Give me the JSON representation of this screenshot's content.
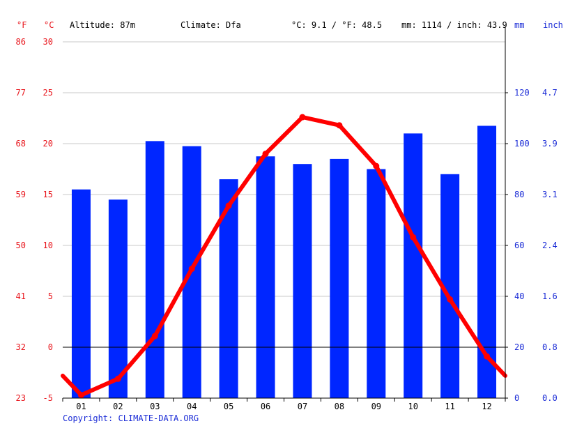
{
  "header": {
    "unit_f": "°F",
    "unit_c": "°C",
    "altitude": "Altitude: 87m",
    "climate": "Climate: Dfa",
    "avg_temp": "°C: 9.1 / °F: 48.5",
    "precip": "mm: 1114 / inch: 43.9",
    "unit_mm": "mm",
    "unit_inch": "inch"
  },
  "footer": {
    "copyright": "Copyright: CLIMATE-DATA.ORG"
  },
  "colors": {
    "temperature": "#ff0000",
    "precipitation": "#0026ff",
    "axis_red": "#e8141b",
    "axis_blue": "#1a2bd6",
    "grid": "#c8c8c8"
  },
  "chart_data": {
    "type": "bar",
    "categories": [
      "01",
      "02",
      "03",
      "04",
      "05",
      "06",
      "07",
      "08",
      "09",
      "10",
      "11",
      "12"
    ],
    "series": [
      {
        "type": "bar",
        "axis": "right",
        "values": [
          82,
          78,
          101,
          99,
          86,
          95,
          92,
          94,
          90,
          104,
          88,
          107
        ]
      },
      {
        "type": "line",
        "axis": "left",
        "values": [
          -4.7,
          -3.1,
          1.1,
          7.7,
          13.9,
          19.0,
          22.6,
          21.8,
          17.8,
          10.8,
          4.7,
          -0.9
        ]
      }
    ],
    "left_axis": {
      "unit": "°C",
      "ylim": [
        -5,
        30
      ],
      "ticks": [
        -5,
        0,
        5,
        10,
        15,
        20,
        25,
        30
      ]
    },
    "far_left_axis": {
      "unit": "°F",
      "ticks": [
        "23",
        "32",
        "41",
        "50",
        "59",
        "68",
        "77",
        "86"
      ]
    },
    "right_axis": {
      "unit": "mm",
      "ylim": [
        0,
        140
      ],
      "ticks": [
        0,
        20,
        40,
        60,
        80,
        100,
        120
      ]
    },
    "far_right_axis": {
      "unit": "inch",
      "ticks": [
        "0.0",
        "0.8",
        "1.6",
        "2.4",
        "3.1",
        "3.9",
        "4.7"
      ]
    },
    "grid": true,
    "zero_line": true
  }
}
